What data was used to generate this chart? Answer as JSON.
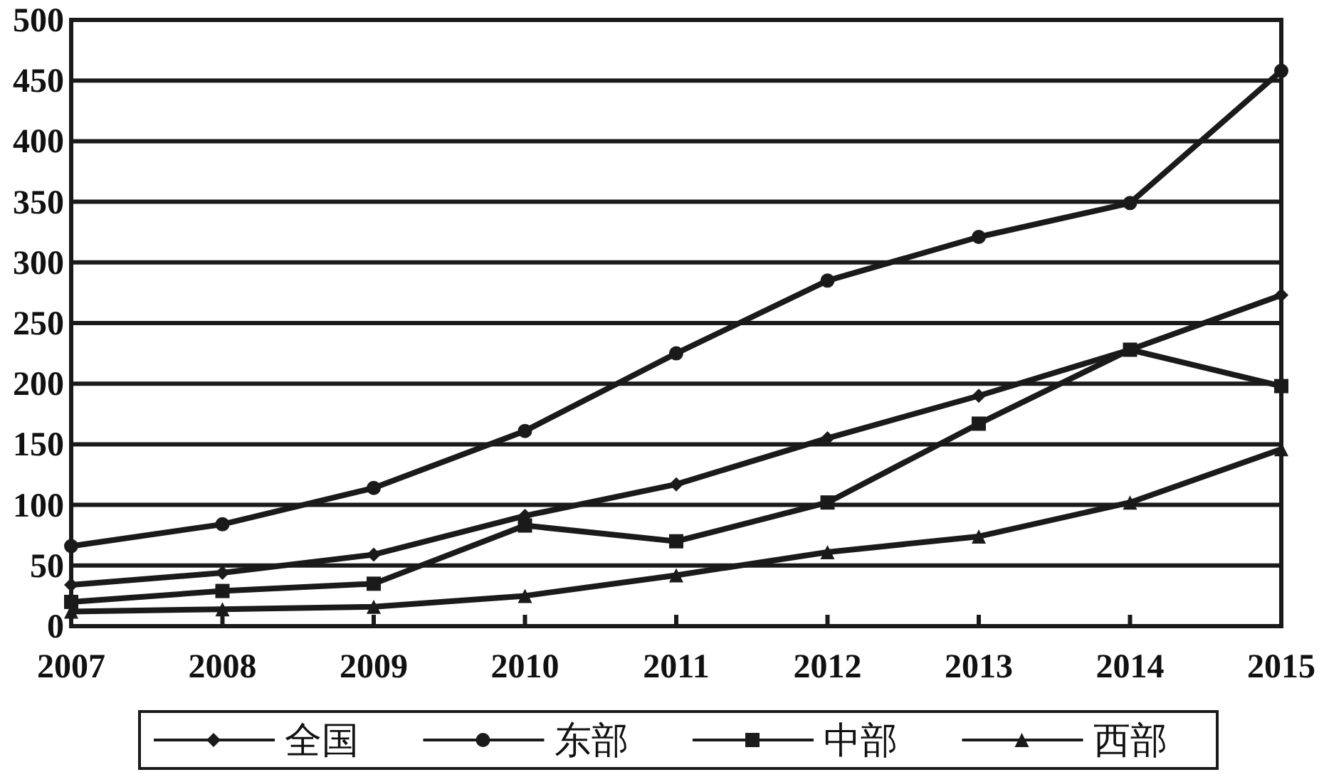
{
  "chart_data": {
    "type": "line",
    "x": [
      2007,
      2008,
      2009,
      2010,
      2011,
      2012,
      2013,
      2014,
      2015
    ],
    "series": [
      {
        "name": "全国",
        "color": "#1a1a1a",
        "marker": "diamond",
        "values": [
          34,
          44,
          59,
          91,
          117,
          155,
          190,
          228,
          273
        ]
      },
      {
        "name": "东部",
        "color": "#1a1a1a",
        "marker": "circle",
        "values": [
          66,
          84,
          114,
          161,
          225,
          285,
          321,
          349,
          458
        ]
      },
      {
        "name": "中部",
        "color": "#1a1a1a",
        "marker": "square",
        "values": [
          20,
          29,
          35,
          83,
          70,
          102,
          167,
          228,
          198
        ]
      },
      {
        "name": "西部",
        "color": "#1a1a1a",
        "marker": "triangle",
        "values": [
          12,
          14,
          16,
          25,
          42,
          61,
          74,
          102,
          146
        ]
      }
    ],
    "xlim": [
      2007,
      2015
    ],
    "xticks": [
      2007,
      2008,
      2009,
      2010,
      2011,
      2012,
      2013,
      2014,
      2015
    ],
    "ylim": [
      0,
      500
    ],
    "yticks": [
      0,
      50,
      100,
      150,
      200,
      250,
      300,
      350,
      400,
      450,
      500
    ],
    "grid": "y",
    "legend": "bottom",
    "line_style": "solid"
  }
}
